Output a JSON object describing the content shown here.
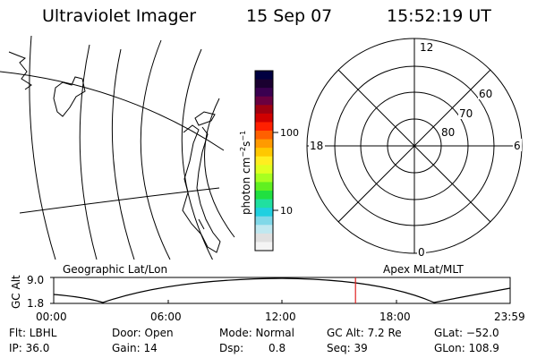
{
  "header": {
    "instrument": "Ultraviolet Imager",
    "date": "15 Sep 07",
    "time": "15:52:19 UT"
  },
  "colorbar": {
    "label": "photon cm⁻²s⁻¹",
    "label_base": "photon cm",
    "label_exp1": "−2",
    "label_mid": "s",
    "label_exp2": "−1",
    "ticks": [
      "100",
      "10"
    ],
    "colors": [
      "#000040",
      "#1a0030",
      "#3a0050",
      "#6a0040",
      "#a00010",
      "#d00000",
      "#ff2000",
      "#ff6000",
      "#ff9a00",
      "#ffc800",
      "#ffee20",
      "#e0ff20",
      "#a8ff20",
      "#60f020",
      "#20e040",
      "#20e0a0",
      "#20d0e0",
      "#80d8e8",
      "#c0e8f0",
      "#e0e0e0",
      "#f4f4f4"
    ]
  },
  "polar": {
    "mlt_labels": [
      "12",
      "18",
      "6",
      "0"
    ],
    "lat_labels": [
      "60",
      "70",
      "80"
    ]
  },
  "map": {
    "caption_left": "Geographic Lat/Lon",
    "caption_right": "Apex MLat/MLT"
  },
  "altitude_plot": {
    "ylabel": "GC Alt",
    "ytick_top": "9.0",
    "ytick_bottom": "1.8",
    "xticks": [
      "00:00",
      "06:00",
      "12:00",
      "18:00",
      "23:59"
    ],
    "current_time_hours": 15.87
  },
  "status": {
    "filter": "Flt: LBHL",
    "door": "Door: Open",
    "mode": "Mode: Normal",
    "gc_alt": "GC Alt: 7.2 Re",
    "glat": "GLat: −52.0",
    "ip": "IP: 36.0",
    "gain": "Gain: 14",
    "dsp_label": "Dsp:",
    "dsp_value": "0.8",
    "seq": "Seq: 39",
    "glon": "GLon: 108.9"
  }
}
